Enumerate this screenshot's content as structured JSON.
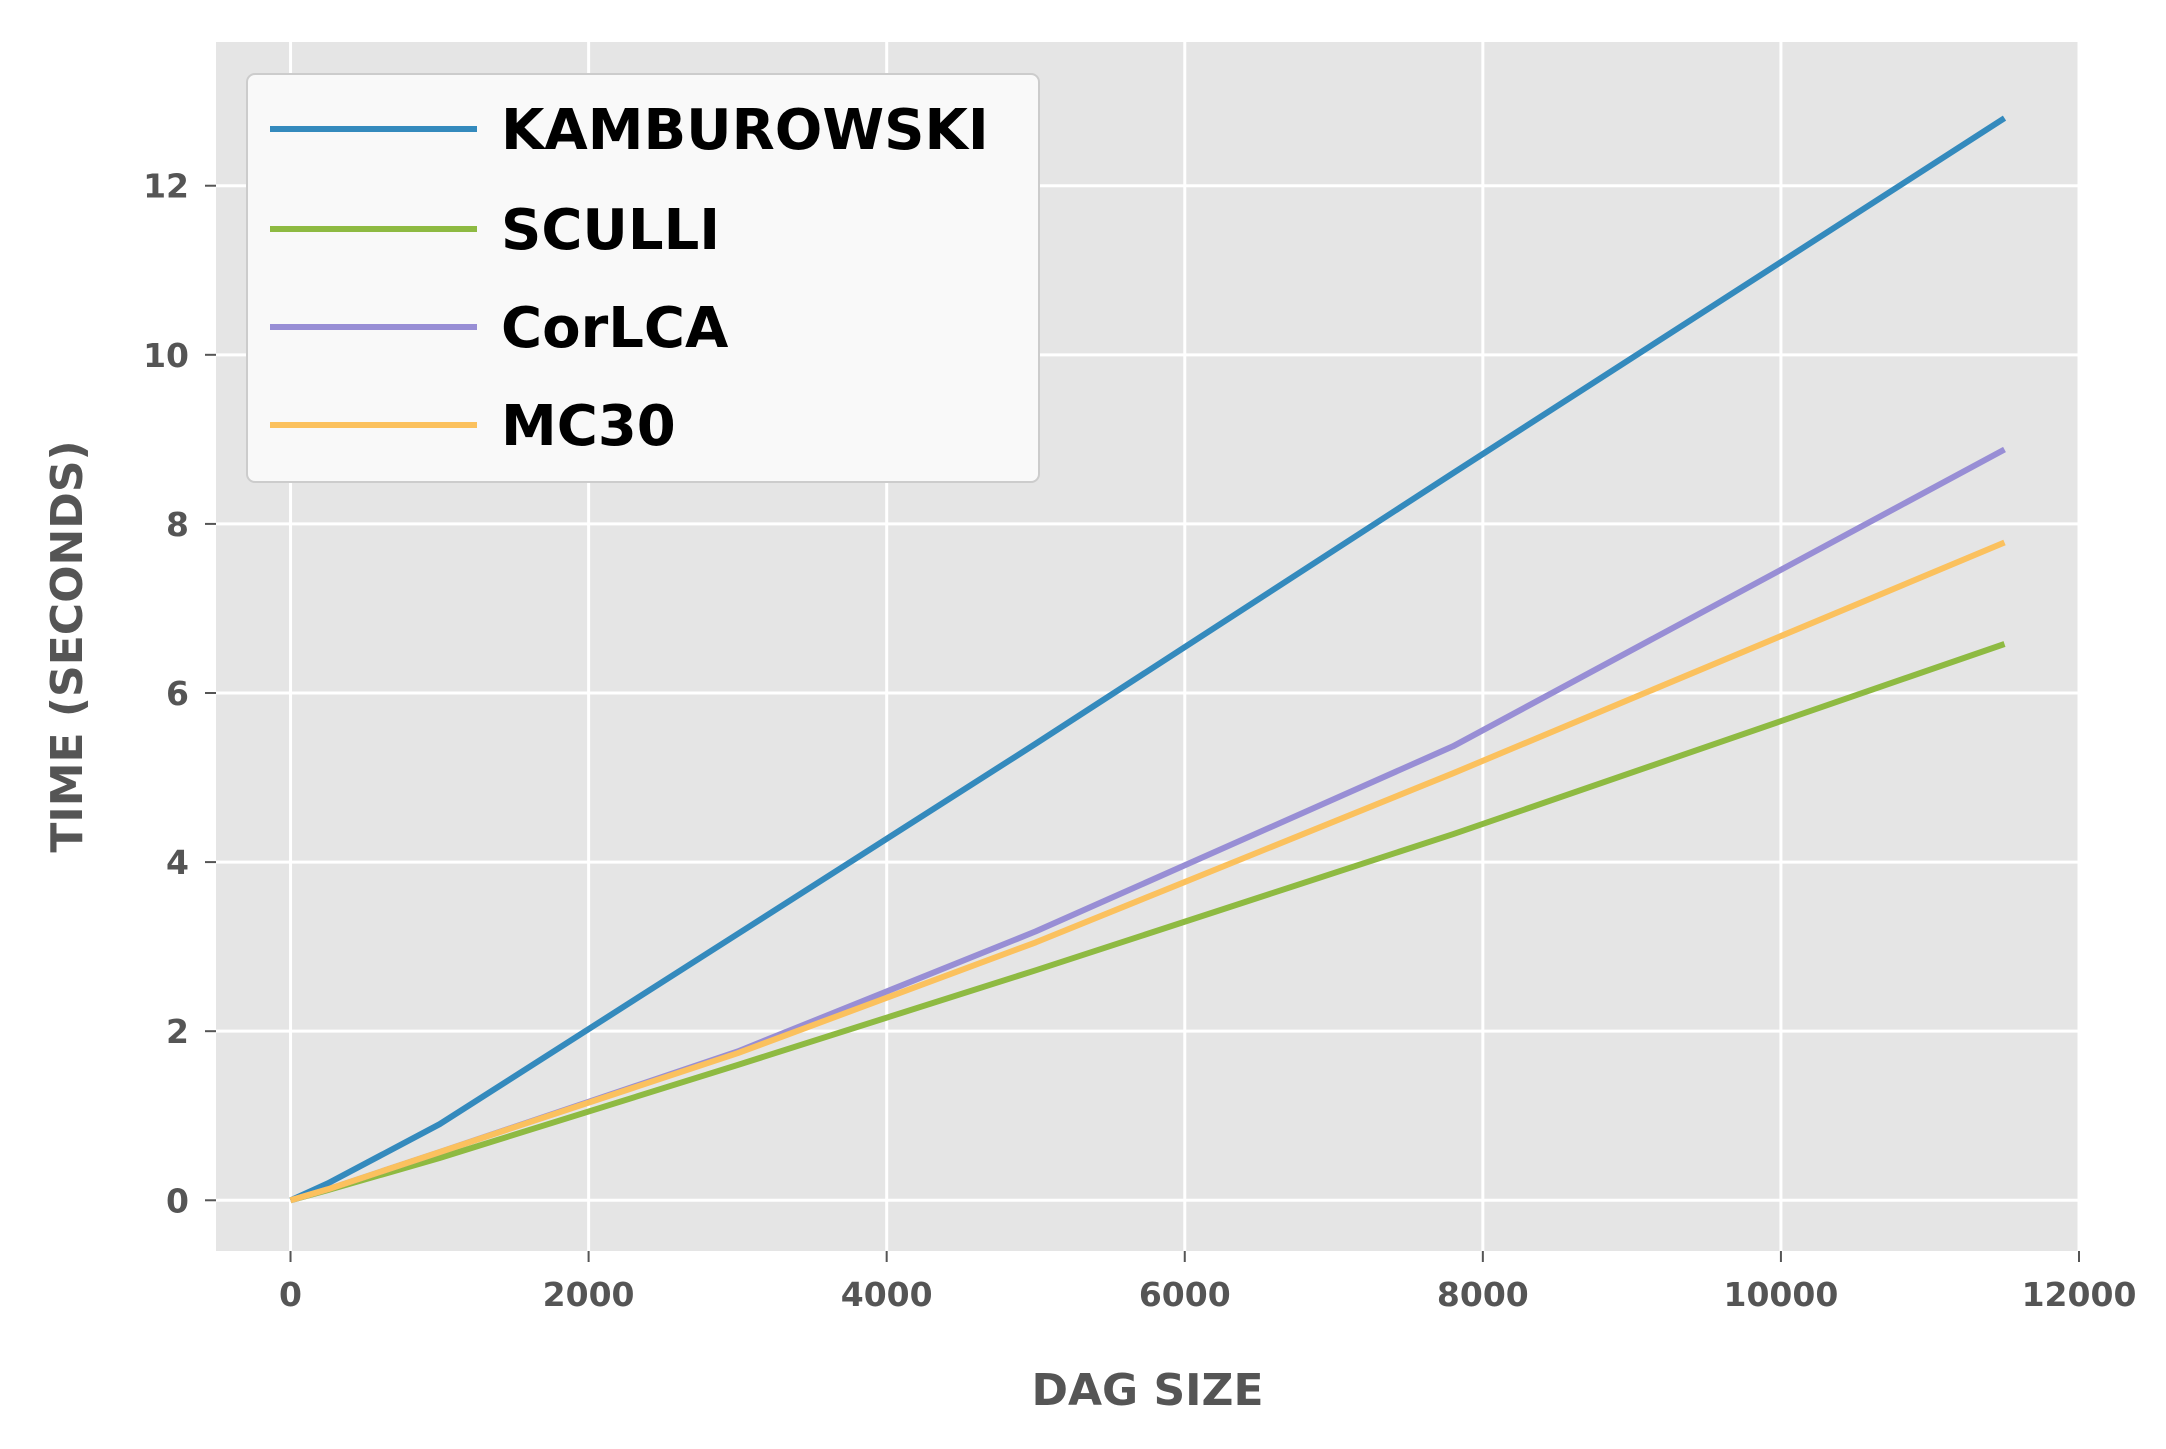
{
  "chart_data": {
    "type": "line",
    "title": "",
    "xlabel": "DAG SIZE",
    "ylabel": "TIME (SECONDS)",
    "xlim": [
      -500,
      12000
    ],
    "ylim": [
      -0.6,
      13.7
    ],
    "xticks": [
      0,
      2000,
      4000,
      6000,
      8000,
      10000,
      12000
    ],
    "xtick_labels": [
      "0",
      "2000",
      "4000",
      "6000",
      "8000",
      "10000",
      "12000"
    ],
    "yticks": [
      0,
      2,
      4,
      6,
      8,
      10,
      12
    ],
    "ytick_labels": [
      "0",
      "2",
      "4",
      "6",
      "8",
      "10",
      "12"
    ],
    "grid": true,
    "legend_position": "top-left",
    "series": [
      {
        "name": "KAMBUROWSKI",
        "color": "#348abd",
        "x": [
          0,
          250,
          1000,
          3000,
          5000,
          7800,
          11500
        ],
        "y": [
          0,
          0.2,
          0.9,
          3.15,
          5.4,
          8.6,
          12.8
        ]
      },
      {
        "name": "SCULLI",
        "color": "#8eba42",
        "x": [
          0,
          250,
          1000,
          3000,
          5000,
          7800,
          11500
        ],
        "y": [
          0,
          0.12,
          0.5,
          1.6,
          2.72,
          4.33,
          6.58
        ]
      },
      {
        "name": "CorLCA",
        "color": "#988ed5",
        "x": [
          0,
          250,
          1000,
          3000,
          5000,
          7800,
          11500
        ],
        "y": [
          0,
          0.13,
          0.57,
          1.76,
          3.18,
          5.37,
          8.88
        ]
      },
      {
        "name": "MC30",
        "color": "#fbc15e",
        "x": [
          0,
          250,
          1000,
          3000,
          5000,
          7800,
          11500
        ],
        "y": [
          0,
          0.13,
          0.57,
          1.74,
          3.05,
          5.05,
          7.78
        ]
      }
    ]
  }
}
